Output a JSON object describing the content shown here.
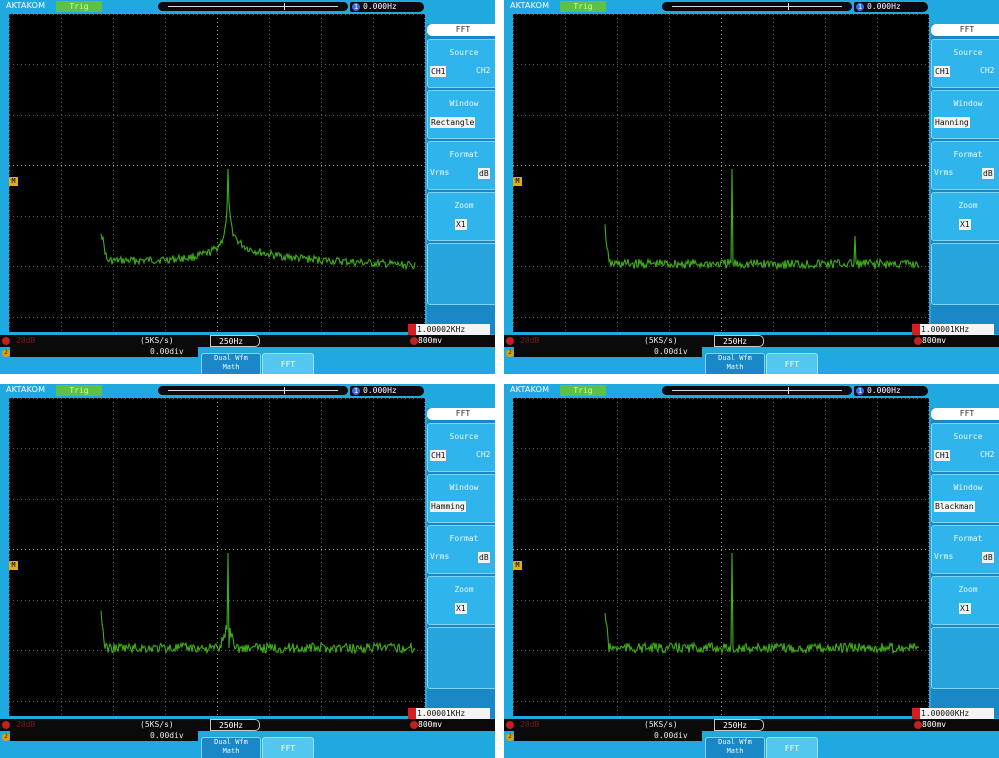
{
  "panels": [
    {
      "brand": "AKTAKOM",
      "trigger_status": "Trig",
      "trigger_frequency": "0.000Hz",
      "frequency_unit_icon": "channel-1-circle-icon",
      "menu": {
        "title": "FFT",
        "source": {
          "label": "Source",
          "options": [
            "CH1",
            "CH2"
          ],
          "selected": "CH1"
        },
        "window": {
          "label": "Window",
          "value": "Rectangle"
        },
        "format": {
          "label": "Format",
          "options": [
            "Vrms",
            "dB"
          ],
          "selected": "dB"
        },
        "zoom": {
          "label": "Zoom",
          "value": "X1"
        }
      },
      "fft_readout": "1.00002KHz",
      "ch1_scale": "20dB",
      "sample_rate": "(5KS/s)",
      "offset_div": "0.00div",
      "freq_per_div": "250Hz",
      "trigger_level": "800mv",
      "dual_wfm_line1": "Dual Wfm",
      "dual_wfm_line2": "Math",
      "fft_button": "FFT",
      "marker": "M",
      "ch2_marker": "2"
    },
    {
      "brand": "AKTAKOM",
      "trigger_status": "Trig",
      "trigger_frequency": "0.000Hz",
      "frequency_unit_icon": "channel-1-circle-icon",
      "menu": {
        "title": "FFT",
        "source": {
          "label": "Source",
          "options": [
            "CH1",
            "CH2"
          ],
          "selected": "CH1"
        },
        "window": {
          "label": "Window",
          "value": "Hanning"
        },
        "format": {
          "label": "Format",
          "options": [
            "Vrms",
            "dB"
          ],
          "selected": "dB"
        },
        "zoom": {
          "label": "Zoom",
          "value": "X1"
        }
      },
      "fft_readout": "1.00001KHz",
      "ch1_scale": "20dB",
      "sample_rate": "(5KS/s)",
      "offset_div": "0.00div",
      "freq_per_div": "250Hz",
      "trigger_level": "800mv",
      "dual_wfm_line1": "Dual Wfm",
      "dual_wfm_line2": "Math",
      "fft_button": "FFT",
      "marker": "M",
      "ch2_marker": "2"
    },
    {
      "brand": "AKTAKOM",
      "trigger_status": "Trig",
      "trigger_frequency": "0.000Hz",
      "frequency_unit_icon": "channel-1-circle-icon",
      "menu": {
        "title": "FFT",
        "source": {
          "label": "Source",
          "options": [
            "CH1",
            "CH2"
          ],
          "selected": "CH1"
        },
        "window": {
          "label": "Window",
          "value": "Hamming"
        },
        "format": {
          "label": "Format",
          "options": [
            "Vrms",
            "dB"
          ],
          "selected": "dB"
        },
        "zoom": {
          "label": "Zoom",
          "value": "X1"
        }
      },
      "fft_readout": "1.00001KHz",
      "ch1_scale": "20dB",
      "sample_rate": "(5KS/s)",
      "offset_div": "0.00div",
      "freq_per_div": "250Hz",
      "trigger_level": "800mv",
      "dual_wfm_line1": "Dual Wfm",
      "dual_wfm_line2": "Math",
      "fft_button": "FFT",
      "marker": "M",
      "ch2_marker": "2"
    },
    {
      "brand": "AKTAKOM",
      "trigger_status": "Trig",
      "trigger_frequency": "0.000Hz",
      "frequency_unit_icon": "channel-1-circle-icon",
      "menu": {
        "title": "FFT",
        "source": {
          "label": "Source",
          "options": [
            "CH1",
            "CH2"
          ],
          "selected": "CH1"
        },
        "window": {
          "label": "Window",
          "value": "Blackman"
        },
        "format": {
          "label": "Format",
          "options": [
            "Vrms",
            "dB"
          ],
          "selected": "dB"
        },
        "zoom": {
          "label": "Zoom",
          "value": "X1"
        }
      },
      "fft_readout": "1.00000KHz",
      "ch1_scale": "20dB",
      "sample_rate": "(5KS/s)",
      "offset_div": "0.00div",
      "freq_per_div": "250Hz",
      "trigger_level": "800mv",
      "dual_wfm_line1": "Dual Wfm",
      "dual_wfm_line2": "Math",
      "fft_button": "FFT",
      "marker": "M",
      "ch2_marker": "2"
    }
  ],
  "colors": {
    "frame_blue": "#20a8e0",
    "trace_green": "#3fae17",
    "screen_black": "#000000",
    "trig_green": "#5cc04a",
    "ch1_red": "#d02020"
  }
}
